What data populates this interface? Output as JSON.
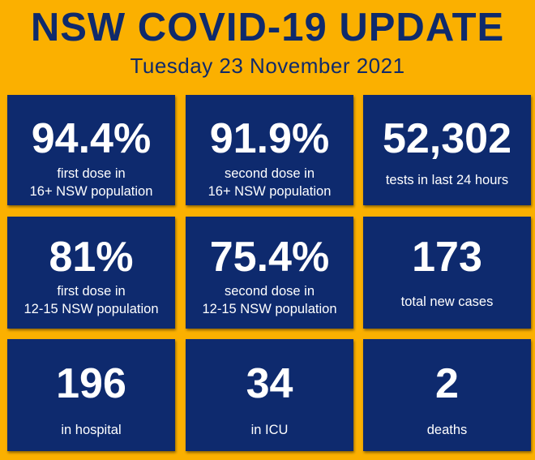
{
  "header": {
    "title": "NSW COVID-19 UPDATE",
    "date": "Tuesday 23 November 2021"
  },
  "stats": [
    {
      "value": "94.4%",
      "label": "first dose in\n16+ NSW population"
    },
    {
      "value": "91.9%",
      "label": "second dose in\n16+ NSW population"
    },
    {
      "value": "52,302",
      "label": "tests in last 24 hours"
    },
    {
      "value": "81%",
      "label": "first dose in\n12-15 NSW population"
    },
    {
      "value": "75.4%",
      "label": "second dose in\n12-15 NSW population"
    },
    {
      "value": "173",
      "label": "total new cases"
    },
    {
      "value": "196",
      "label": "in hospital"
    },
    {
      "value": "34",
      "label": "in ICU"
    },
    {
      "value": "2",
      "label": "deaths"
    }
  ],
  "colors": {
    "background": "#fbb000",
    "tile": "#0e2a6e",
    "title_text": "#0f2a6b",
    "tile_text": "#ffffff"
  }
}
